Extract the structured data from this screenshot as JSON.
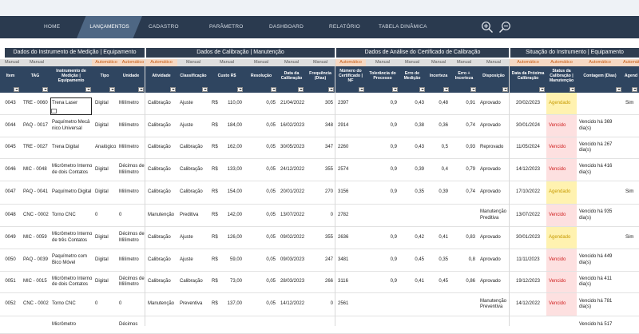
{
  "nav": {
    "home": "HOME",
    "items": [
      "LANÇAMENTOS",
      "CADASTRO",
      "PARÂMETRO",
      "DASHBOARD",
      "RELATÓRIO",
      "TABELA DINÂMICA"
    ]
  },
  "icons": [
    "zoom-in-icon",
    "zoom-out-icon"
  ],
  "groups": [
    "Dados do Instrumento de Medição | Equipamento",
    "Dados de Calibração | Manutenção",
    "Dados de Análise do Certificado de Calibração",
    "Situação do Instrumento | Equipamento"
  ],
  "types": [
    "Manual",
    "Manual",
    "Automático",
    "Automático",
    "Automático",
    "Manual",
    "Manual",
    "Manual",
    "Manual",
    "Manual",
    "Automático",
    "Manual",
    "Manual",
    "Manual",
    "Manual",
    "Manual",
    "Automático",
    "Automático",
    "Automático",
    "Automático",
    "Automático",
    "Manu"
  ],
  "headers": [
    "Item",
    "TAG",
    "Instrumento de Medição | Equipamento",
    "Tipo",
    "Unidade",
    "Atividade",
    "Classificação",
    "Custo R$",
    "Resolução",
    "Data da Calibração",
    "Frequência (Dias)",
    "Número do Certificado | NF",
    "Tolerância do Processo",
    "Erro de Medição",
    "Incerteza",
    "Erro + Incerteza",
    "Disposição",
    "Data da Próxima Calibração",
    "Status da Calibração | Manutenção",
    "Contagem (Dias)",
    "Agend"
  ],
  "rows": [
    {
      "item": "0043",
      "tag": "TRE - 0060",
      "inst": "Trena Laser",
      "tipo": "Digital",
      "unid": "Milímetro",
      "ativ": "Calibração",
      "clas": "Ajuste",
      "rs": "R$",
      "custo": "110,00",
      "res": "0,05",
      "data": "21/04/2022",
      "freq": "305",
      "cert": "2397",
      "tol": "0,9",
      "erro": "0,43",
      "inc": "0,48",
      "ei": "0,91",
      "disp": "Aprovado",
      "prox": "20/02/2023",
      "status": "Agendado",
      "cont": "",
      "ag": "Sim"
    },
    {
      "item": "0044",
      "tag": "PAQ - 0017",
      "inst": "Paquímetro Mecâ nico Universal",
      "tipo": "Digital",
      "unid": "Milímetro",
      "ativ": "Calibração",
      "clas": "Ajuste",
      "rs": "R$",
      "custo": "184,00",
      "res": "0,05",
      "data": "16/02/2023",
      "freq": "348",
      "cert": "2914",
      "tol": "0,9",
      "erro": "0,38",
      "inc": "0,36",
      "ei": "0,74",
      "disp": "Aprovado",
      "prox": "30/01/2024",
      "status": "Vencido",
      "cont": "Vencido há 369 dia(s)",
      "ag": ""
    },
    {
      "item": "0045",
      "tag": "TRE - 0027",
      "inst": "Trena Digital",
      "tipo": "Analógico",
      "unid": "Milímetro",
      "ativ": "Calibração",
      "clas": "Calibração",
      "rs": "R$",
      "custo": "162,00",
      "res": "0,05",
      "data": "30/05/2023",
      "freq": "347",
      "cert": "2260",
      "tol": "0,9",
      "erro": "0,43",
      "inc": "0,5",
      "ei": "0,93",
      "disp": "Reprovado",
      "prox": "11/05/2024",
      "status": "Vencido",
      "cont": "Vencido há 267 dia(s)",
      "ag": ""
    },
    {
      "item": "0046",
      "tag": "MIC - 0048",
      "inst": "Micrômetro Interno de dois Contatos",
      "tipo": "Digital",
      "unid": "Décimos de Milímetro",
      "ativ": "Calibração",
      "clas": "Calibração",
      "rs": "R$",
      "custo": "133,00",
      "res": "0,05",
      "data": "24/12/2022",
      "freq": "355",
      "cert": "2574",
      "tol": "0,9",
      "erro": "0,39",
      "inc": "0,4",
      "ei": "0,79",
      "disp": "Aprovado",
      "prox": "14/12/2023",
      "status": "Vencido",
      "cont": "Vencido há 416 dia(s)",
      "ag": ""
    },
    {
      "item": "0047",
      "tag": "PAQ - 0041",
      "inst": "Paquímetro Digital",
      "tipo": "Digital",
      "unid": "Milímetro",
      "ativ": "Calibração",
      "clas": "Calibração",
      "rs": "R$",
      "custo": "154,00",
      "res": "0,05",
      "data": "20/01/2022",
      "freq": "270",
      "cert": "3156",
      "tol": "0,9",
      "erro": "0,35",
      "inc": "0,39",
      "ei": "0,74",
      "disp": "Aprovado",
      "prox": "17/10/2022",
      "status": "Agendado",
      "cont": "",
      "ag": "Sim"
    },
    {
      "item": "0048",
      "tag": "CNC - 0002",
      "inst": "Torno CNC",
      "tipo": "0",
      "unid": "0",
      "ativ": "Manutenção",
      "clas": "Preditiva",
      "rs": "R$",
      "custo": "142,00",
      "res": "0,05",
      "data": "13/07/2022",
      "freq": "0",
      "cert": "2782",
      "tol": "",
      "erro": "",
      "inc": "",
      "ei": "",
      "disp": "Manutenção Preditiva",
      "prox": "13/07/2022",
      "status": "Vencido",
      "cont": "Vencido há 935 dia(s)",
      "ag": ""
    },
    {
      "item": "0049",
      "tag": "MIC - 0059",
      "inst": "Micrômetro Interno de três Contatos",
      "tipo": "Digital",
      "unid": "Décimos de Milímetro",
      "ativ": "Calibração",
      "clas": "Ajuste",
      "rs": "R$",
      "custo": "126,00",
      "res": "0,05",
      "data": "09/02/2022",
      "freq": "355",
      "cert": "2636",
      "tol": "0,9",
      "erro": "0,42",
      "inc": "0,41",
      "ei": "0,83",
      "disp": "Aprovado",
      "prox": "30/01/2023",
      "status": "Agendado",
      "cont": "",
      "ag": "Sim"
    },
    {
      "item": "0050",
      "tag": "PAQ - 0039",
      "inst": "Paquímetro com Bico Móvel",
      "tipo": "Digital",
      "unid": "Milímetro",
      "ativ": "Calibração",
      "clas": "Ajuste",
      "rs": "R$",
      "custo": "59,00",
      "res": "0,05",
      "data": "09/03/2023",
      "freq": "247",
      "cert": "3481",
      "tol": "0,9",
      "erro": "0,45",
      "inc": "0,35",
      "ei": "0,8",
      "disp": "Aprovado",
      "prox": "11/11/2023",
      "status": "Vencido",
      "cont": "Vencido há 449 dia(s)",
      "ag": ""
    },
    {
      "item": "0051",
      "tag": "MIC - 0015",
      "inst": "Micrômetro Interno de dois Contatos",
      "tipo": "Digital",
      "unid": "Décimos de Milímetro",
      "ativ": "Calibração",
      "clas": "Calibração",
      "rs": "R$",
      "custo": "73,00",
      "res": "0,05",
      "data": "28/03/2023",
      "freq": "266",
      "cert": "3116",
      "tol": "0,9",
      "erro": "0,41",
      "inc": "0,45",
      "ei": "0,86",
      "disp": "Aprovado",
      "prox": "19/12/2023",
      "status": "Vencido",
      "cont": "Vencido há 411 dia(s)",
      "ag": ""
    },
    {
      "item": "0052",
      "tag": "CNC - 0002",
      "inst": "Torno CNC",
      "tipo": "0",
      "unid": "0",
      "ativ": "Manutenção",
      "clas": "Preventiva",
      "rs": "R$",
      "custo": "137,00",
      "res": "0,05",
      "data": "14/12/2022",
      "freq": "0",
      "cert": "2561",
      "tol": "",
      "erro": "",
      "inc": "",
      "ei": "",
      "disp": "Manutenção Preventiva",
      "prox": "14/12/2022",
      "status": "Vencido",
      "cont": "Vencido há 781 dia(s)",
      "ag": ""
    },
    {
      "item": "",
      "tag": "",
      "inst": "Micrômetro",
      "tipo": "",
      "unid": "Décimos",
      "ativ": "",
      "clas": "",
      "rs": "",
      "custo": "",
      "res": "",
      "data": "",
      "freq": "",
      "cert": "",
      "tol": "",
      "erro": "",
      "inc": "",
      "ei": "",
      "disp": "",
      "prox": "",
      "status": "",
      "cont": "Vencido há 517",
      "ag": ""
    }
  ]
}
